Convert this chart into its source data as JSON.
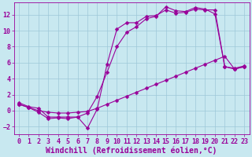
{
  "line1_x": [
    0,
    1,
    2,
    3,
    4,
    5,
    6,
    7,
    8,
    9,
    10,
    11,
    12,
    13,
    14,
    15,
    16,
    17,
    18,
    19,
    20,
    21,
    22,
    23
  ],
  "line1_y": [
    1,
    0.5,
    0.3,
    -0.8,
    -0.8,
    -0.8,
    -0.8,
    -2.2,
    0.2,
    5.8,
    10.2,
    11.0,
    11.0,
    11.8,
    11.9,
    12.6,
    12.2,
    12.3,
    12.7,
    12.6,
    12.6,
    5.5,
    5.2,
    5.5
  ],
  "line2_x": [
    0,
    1,
    2,
    3,
    4,
    5,
    6,
    7,
    8,
    9,
    10,
    11,
    12,
    13,
    14,
    15,
    16,
    17,
    18,
    19,
    20,
    21,
    22,
    23
  ],
  "line2_y": [
    0.8,
    0.4,
    -0.2,
    -1.0,
    -0.9,
    -1.0,
    -0.8,
    -0.3,
    1.8,
    4.8,
    8.0,
    9.8,
    10.5,
    11.5,
    11.8,
    13.0,
    12.5,
    12.4,
    12.9,
    12.7,
    12.1,
    5.5,
    5.3,
    5.6
  ],
  "line3_x": [
    0,
    1,
    2,
    3,
    4,
    5,
    6,
    7,
    8,
    9,
    10,
    11,
    12,
    13,
    14,
    15,
    16,
    17,
    18,
    19,
    20,
    21,
    22,
    23
  ],
  "line3_y": [
    0.8,
    0.4,
    0.0,
    -0.2,
    -0.3,
    -0.3,
    -0.2,
    -0.1,
    0.3,
    0.8,
    1.3,
    1.8,
    2.3,
    2.8,
    3.3,
    3.8,
    4.3,
    4.8,
    5.3,
    5.8,
    6.3,
    6.8,
    5.2,
    5.5
  ],
  "line_color": "#990099",
  "bg_color": "#c8e8f0",
  "grid_color": "#9dc8d8",
  "xlabel": "Windchill (Refroidissement éolien,°C)",
  "xlim": [
    -0.5,
    23.5
  ],
  "ylim": [
    -3,
    13.5
  ],
  "xticks": [
    0,
    1,
    2,
    3,
    4,
    5,
    6,
    7,
    8,
    9,
    10,
    11,
    12,
    13,
    14,
    15,
    16,
    17,
    18,
    19,
    20,
    21,
    22,
    23
  ],
  "yticks": [
    -2,
    0,
    2,
    4,
    6,
    8,
    10,
    12
  ],
  "xlabel_fontsize": 7,
  "tick_fontsize": 6,
  "marker": "D",
  "markersize": 2.5,
  "linewidth": 0.8
}
